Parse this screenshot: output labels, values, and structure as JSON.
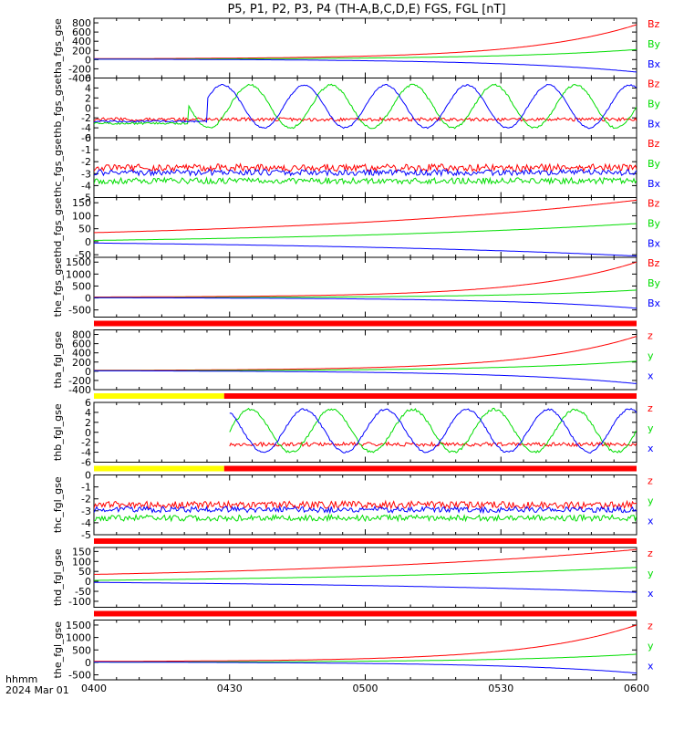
{
  "title": "P5, P1, P2, P3, P4 (TH-A,B,C,D,E) FGS, FGL [nT]",
  "colors": {
    "x": "#0000ff",
    "y": "#00dd00",
    "z": "#ff0000",
    "bar_red": "#ff0000",
    "bar_yellow": "#ffff00"
  },
  "footer": {
    "line1": "hhmm",
    "line2": "2024 Mar 01"
  },
  "chart_data": {
    "type": "line",
    "x_ticks": [
      "0400",
      "0430",
      "0500",
      "0530",
      "0600"
    ],
    "x_range": [
      "04:00",
      "06:00"
    ],
    "panels": [
      {
        "ylabel": "tha_fgs_gse",
        "ylim": [
          -400,
          900
        ],
        "yticks": [
          800,
          600,
          400,
          200,
          0,
          -200,
          -400
        ],
        "comp_labels": [
          "Bz",
          "By",
          "Bx"
        ],
        "status_bar": null,
        "series": [
          {
            "name": "Bz",
            "kind": "growth",
            "start_time": 4.0,
            "start": 20,
            "end": 760,
            "k": 5,
            "noise": 0
          },
          {
            "name": "By",
            "kind": "growth",
            "start_time": 4.0,
            "start": 10,
            "end": 220,
            "k": 4,
            "noise": 0
          },
          {
            "name": "Bx",
            "kind": "growth",
            "start_time": 4.0,
            "start": 10,
            "end": -270,
            "k": 4,
            "noise": 0
          }
        ]
      },
      {
        "ylabel": "thb_fgs_gse",
        "ylim": [
          -6,
          6
        ],
        "yticks": [
          6,
          4,
          2,
          0,
          -2,
          -4,
          -6
        ],
        "comp_labels": [
          "Bz",
          "By",
          "Bx"
        ],
        "status_bar": null,
        "series": [
          {
            "name": "Bz",
            "kind": "flat",
            "start_time": 4.0,
            "level": -2.3,
            "noise": 0.35
          },
          {
            "name": "By",
            "kind": "sine",
            "start_time": 4.0,
            "pre_time": 4.35,
            "pre_level": -3.1,
            "offset": 0.3,
            "amp": 4.3,
            "period": 0.3,
            "phase_time": 4.5,
            "noise": 0.2
          },
          {
            "name": "Bx",
            "kind": "sine",
            "start_time": 4.0,
            "pre_time": 4.42,
            "pre_level": -2.7,
            "offset": 0.3,
            "amp": 4.3,
            "period": 0.3,
            "phase_time": 4.4,
            "noise": 0.15
          }
        ]
      },
      {
        "ylabel": "thc_fgs_gse",
        "ylim": [
          -5,
          0
        ],
        "yticks": [
          0,
          -1,
          -2,
          -3,
          -4,
          -5
        ],
        "comp_labels": [
          "Bz",
          "By",
          "Bx"
        ],
        "status_bar": null,
        "series": [
          {
            "name": "Bz",
            "kind": "flat",
            "start_time": 4.0,
            "level": -2.5,
            "noise": 0.3
          },
          {
            "name": "By",
            "kind": "flat",
            "start_time": 4.0,
            "level": -3.6,
            "noise": 0.25
          },
          {
            "name": "Bx",
            "kind": "flat",
            "start_time": 4.0,
            "level": -2.9,
            "noise": 0.25
          }
        ]
      },
      {
        "ylabel": "thd_fgs_gse",
        "ylim": [
          -60,
          170
        ],
        "yticks": [
          150,
          100,
          50,
          0,
          -50
        ],
        "comp_labels": [
          "Bz",
          "By",
          "Bx"
        ],
        "status_bar": null,
        "series": [
          {
            "name": "Bz",
            "kind": "growth",
            "start_time": 4.0,
            "start": 35,
            "end": 160,
            "k": 1.5,
            "noise": 0
          },
          {
            "name": "By",
            "kind": "growth",
            "start_time": 4.0,
            "start": 5,
            "end": 70,
            "k": 1.5,
            "noise": 0
          },
          {
            "name": "Bx",
            "kind": "growth",
            "start_time": 4.0,
            "start": -5,
            "end": -55,
            "k": 1.5,
            "noise": 0
          }
        ]
      },
      {
        "ylabel": "the_fgs_gse",
        "ylim": [
          -800,
          1700
        ],
        "yticks": [
          1500,
          1000,
          500,
          0,
          -500
        ],
        "comp_labels": [
          "Bz",
          "By",
          "Bx"
        ],
        "status_bar": "red",
        "series": [
          {
            "name": "Bz",
            "kind": "growth",
            "start_time": 4.0,
            "start": 40,
            "end": 1500,
            "k": 5,
            "noise": 0
          },
          {
            "name": "By",
            "kind": "growth",
            "start_time": 4.0,
            "start": 10,
            "end": 330,
            "k": 4,
            "noise": 0
          },
          {
            "name": "Bx",
            "kind": "growth",
            "start_time": 4.0,
            "start": 10,
            "end": -430,
            "k": 4,
            "noise": 0
          }
        ]
      },
      {
        "ylabel": "tha_fgl_gse",
        "ylim": [
          -400,
          900
        ],
        "yticks": [
          800,
          600,
          400,
          200,
          0,
          -200,
          -400
        ],
        "comp_labels": [
          "z",
          "y",
          "x"
        ],
        "status_bar": "yellow-red",
        "series": [
          {
            "name": "z",
            "kind": "growth",
            "start_time": 4.0,
            "start": 20,
            "end": 760,
            "k": 5,
            "noise": 0
          },
          {
            "name": "y",
            "kind": "growth",
            "start_time": 4.0,
            "start": 10,
            "end": 220,
            "k": 4,
            "noise": 0
          },
          {
            "name": "x",
            "kind": "growth",
            "start_time": 4.0,
            "start": 10,
            "end": -270,
            "k": 4,
            "noise": 0
          }
        ]
      },
      {
        "ylabel": "thb_fgl_gse",
        "ylim": [
          -6,
          6
        ],
        "yticks": [
          6,
          4,
          2,
          0,
          -2,
          -4,
          -6
        ],
        "comp_labels": [
          "z",
          "y",
          "x"
        ],
        "status_bar": "yellow-red",
        "series": [
          {
            "name": "z",
            "kind": "flat",
            "start_time": 4.5,
            "level": -2.4,
            "noise": 0.4
          },
          {
            "name": "y",
            "kind": "sine",
            "start_time": 4.5,
            "pre_time": 4.5,
            "pre_level": -3.2,
            "offset": 0.3,
            "amp": 4.3,
            "period": 0.3,
            "phase_time": 4.5,
            "noise": 0.25
          },
          {
            "name": "x",
            "kind": "sine",
            "start_time": 4.5,
            "pre_time": 4.5,
            "pre_level": -2.7,
            "offset": 0.3,
            "amp": 4.3,
            "period": 0.3,
            "phase_time": 4.4,
            "noise": 0.2
          }
        ]
      },
      {
        "ylabel": "thc_fgl_gse",
        "ylim": [
          -5,
          0
        ],
        "yticks": [
          0,
          -1,
          -2,
          -3,
          -4,
          -5
        ],
        "comp_labels": [
          "z",
          "y",
          "x"
        ],
        "status_bar": "red",
        "series": [
          {
            "name": "z",
            "kind": "flat",
            "start_time": 4.0,
            "level": -2.5,
            "noise": 0.3
          },
          {
            "name": "y",
            "kind": "flat",
            "start_time": 4.0,
            "level": -3.6,
            "noise": 0.25
          },
          {
            "name": "x",
            "kind": "flat",
            "start_time": 4.0,
            "level": -2.9,
            "noise": 0.25
          }
        ]
      },
      {
        "ylabel": "thd_fgl_gse",
        "ylim": [
          -130,
          170
        ],
        "yticks": [
          150,
          100,
          50,
          0,
          -50,
          -100
        ],
        "comp_labels": [
          "z",
          "y",
          "x"
        ],
        "status_bar": "red",
        "series": [
          {
            "name": "z",
            "kind": "growth",
            "start_time": 4.0,
            "start": 35,
            "end": 160,
            "k": 1.5,
            "noise": 0
          },
          {
            "name": "y",
            "kind": "growth",
            "start_time": 4.0,
            "start": 5,
            "end": 70,
            "k": 1.5,
            "noise": 0
          },
          {
            "name": "x",
            "kind": "growth",
            "start_time": 4.0,
            "start": -5,
            "end": -55,
            "k": 1.5,
            "noise": 0
          }
        ]
      },
      {
        "ylabel": "the_fgl_gse",
        "ylim": [
          -700,
          1700
        ],
        "yticks": [
          1500,
          1000,
          500,
          0,
          -500
        ],
        "comp_labels": [
          "z",
          "y",
          "x"
        ],
        "status_bar": null,
        "series": [
          {
            "name": "z",
            "kind": "growth",
            "start_time": 4.0,
            "start": 40,
            "end": 1500,
            "k": 5,
            "noise": 0
          },
          {
            "name": "y",
            "kind": "growth",
            "start_time": 4.0,
            "start": 10,
            "end": 330,
            "k": 4,
            "noise": 0
          },
          {
            "name": "x",
            "kind": "growth",
            "start_time": 4.0,
            "start": 10,
            "end": -430,
            "k": 4,
            "noise": 0
          }
        ]
      }
    ]
  }
}
